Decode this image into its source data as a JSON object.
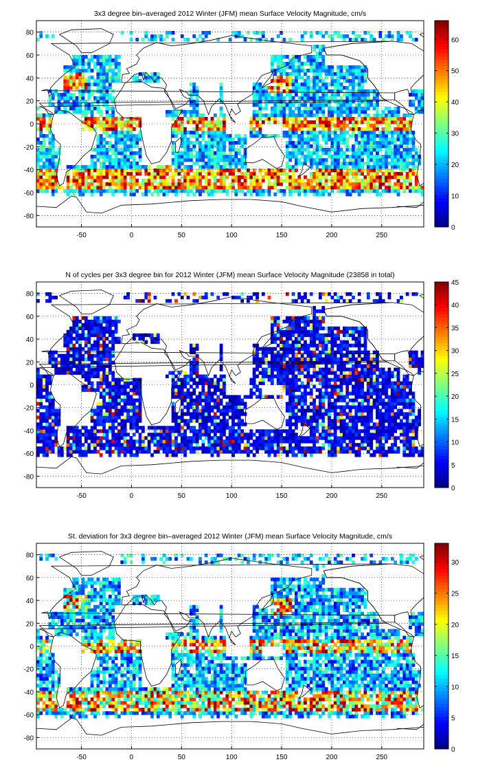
{
  "chart_data": [
    {
      "type": "heatmap",
      "title": "3x3 degree bin–averaged 2012 Winter (JFM) mean Surface Velocity Magnitude, cm/s",
      "xticks": [
        -50,
        0,
        50,
        100,
        150,
        200,
        250
      ],
      "yticks": [
        80,
        60,
        40,
        20,
        0,
        -20,
        -40,
        -60,
        -80
      ],
      "xlim": [
        -95,
        292
      ],
      "ylim": [
        -90,
        90
      ],
      "colorbar": {
        "ticks": [
          0,
          10,
          20,
          30,
          40,
          50,
          60
        ],
        "range": [
          0,
          66
        ],
        "colormap": "jet"
      },
      "bin_size_deg": 3,
      "grid": true,
      "value_pattern": "high (40-66) along the equatorial band, Gulf Stream, Kuroshio and Antarctic Circumpolar Current; 10-30 elsewhere"
    },
    {
      "type": "heatmap",
      "title": "N of cycles per 3x3 degree bin for 2012 Winter (JFM) mean Surface Velocity Magnitude (23858 in total)",
      "xticks": [
        -50,
        0,
        50,
        100,
        150,
        200,
        250
      ],
      "yticks": [
        80,
        60,
        40,
        20,
        0,
        -20,
        -40,
        -60,
        -80
      ],
      "xlim": [
        -95,
        292
      ],
      "ylim": [
        -90,
        90
      ],
      "colorbar": {
        "ticks": [
          0,
          5,
          10,
          15,
          20,
          25,
          30,
          35,
          40,
          45
        ],
        "range": [
          0,
          45
        ],
        "colormap": "jet"
      },
      "bin_size_deg": 3,
      "grid": true,
      "total_cycles": 23858,
      "value_pattern": "mostly 1-10 cycles per bin, occasional bins of 20-45"
    },
    {
      "type": "heatmap",
      "title": "St. deviation for 3x3 degree bin–averaged 2012 Winter (JFM) mean Surface Velocity Magnitude, cm/s",
      "xticks": [
        -50,
        0,
        50,
        100,
        150,
        200,
        250
      ],
      "yticks": [
        80,
        60,
        40,
        20,
        0,
        -20,
        -40,
        -60,
        -80
      ],
      "xlim": [
        -95,
        292
      ],
      "ylim": [
        -90,
        90
      ],
      "colorbar": {
        "ticks": [
          0,
          5,
          10,
          15,
          20,
          25,
          30
        ],
        "range": [
          0,
          33
        ],
        "colormap": "jet"
      },
      "bin_size_deg": 3,
      "grid": true,
      "value_pattern": "mostly 5-15 cm/s, higher (20-33) in western boundary currents and the Southern Ocean"
    }
  ]
}
